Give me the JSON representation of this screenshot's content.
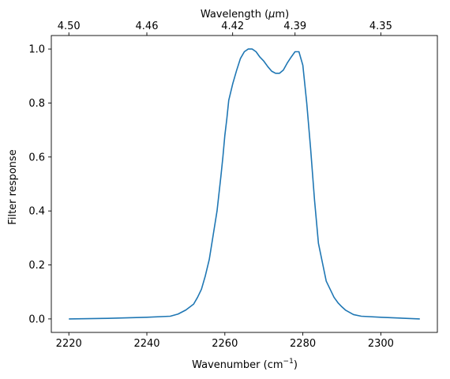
{
  "chart_data": {
    "type": "line",
    "xlabel": "Wavenumber (cm",
    "xlabel_sup": "−1",
    "xlabel_end": ")",
    "ylabel": "Filter response",
    "top_xlabel_pre": "Wavelength (",
    "top_xlabel_mu": "μ",
    "top_xlabel_post": "m)",
    "xlim": [
      2215.5,
      2314.5
    ],
    "ylim": [
      -0.05,
      1.05
    ],
    "grid": false,
    "line_color": "#1f77b4",
    "x_ticks": [
      2220,
      2240,
      2260,
      2280,
      2300
    ],
    "x_tick_labels": [
      "2220",
      "2240",
      "2260",
      "2280",
      "2300"
    ],
    "y_ticks": [
      0.0,
      0.2,
      0.4,
      0.6,
      0.8,
      1.0
    ],
    "y_tick_labels": [
      "0.0",
      "0.2",
      "0.4",
      "0.6",
      "0.8",
      "1.0"
    ],
    "top_ticks": [
      {
        "label": "4.50",
        "wavenumber": 2220
      },
      {
        "label": "4.46",
        "wavenumber": 2240
      },
      {
        "label": "4.42",
        "wavenumber": 2262
      },
      {
        "label": "4.39",
        "wavenumber": 2278
      },
      {
        "label": "4.35",
        "wavenumber": 2300
      }
    ],
    "series": [
      {
        "x": [
          2220,
          2230,
          2240,
          2246,
          2248,
          2250,
          2252,
          2253,
          2254,
          2255,
          2256,
          2257,
          2258,
          2259,
          2259.5,
          2260,
          2260.5,
          2261,
          2262,
          2263,
          2264,
          2265,
          2266,
          2267,
          2268,
          2269,
          2270,
          2271,
          2272,
          2273,
          2274,
          2275,
          2276,
          2277,
          2278,
          2279,
          2280,
          2281,
          2282,
          2283,
          2284,
          2285,
          2286,
          2287,
          2288,
          2289,
          2290,
          2291,
          2292,
          2293,
          2295,
          2300,
          2310
        ],
        "y": [
          0.0,
          0.002,
          0.006,
          0.01,
          0.018,
          0.033,
          0.055,
          0.08,
          0.11,
          0.16,
          0.22,
          0.31,
          0.4,
          0.53,
          0.6,
          0.68,
          0.74,
          0.81,
          0.87,
          0.92,
          0.965,
          0.99,
          1.0,
          1.0,
          0.99,
          0.97,
          0.955,
          0.935,
          0.918,
          0.91,
          0.91,
          0.922,
          0.948,
          0.97,
          0.99,
          0.99,
          0.94,
          0.8,
          0.63,
          0.44,
          0.28,
          0.21,
          0.14,
          0.11,
          0.08,
          0.06,
          0.045,
          0.032,
          0.024,
          0.016,
          0.01,
          0.006,
          0.0
        ]
      }
    ]
  }
}
